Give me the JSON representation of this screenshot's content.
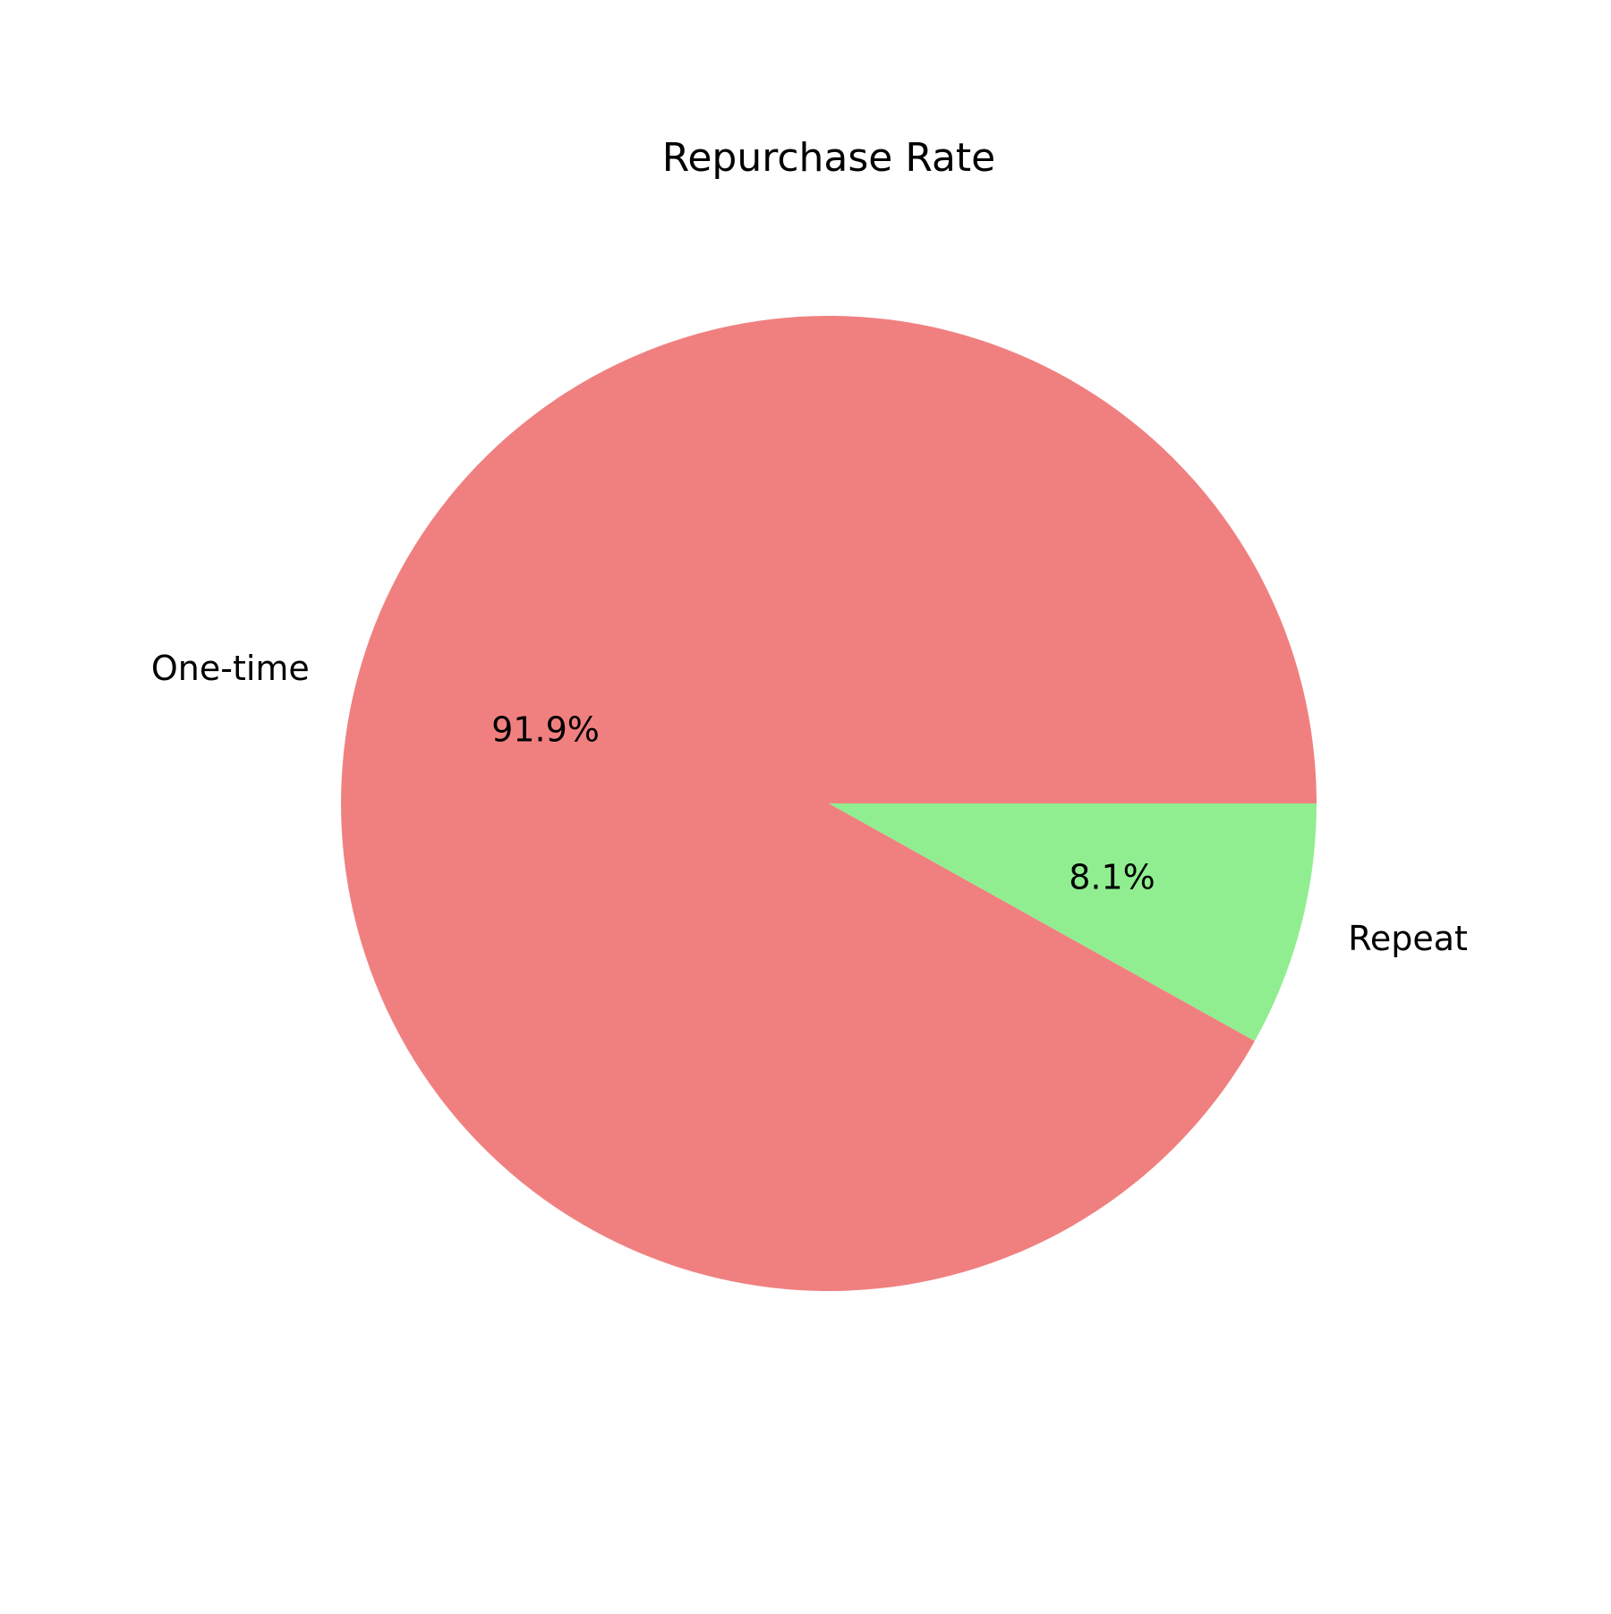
{
  "chart_data": {
    "type": "pie",
    "title": "Repurchase Rate",
    "start_angle_deg": 0,
    "direction": "counterclockwise",
    "slices": [
      {
        "label": "One-time",
        "value": 91.9,
        "pct_label": "91.9%",
        "color": "#f08080"
      },
      {
        "label": "Repeat",
        "value": 8.1,
        "pct_label": "8.1%",
        "color": "#90ee90"
      }
    ]
  }
}
